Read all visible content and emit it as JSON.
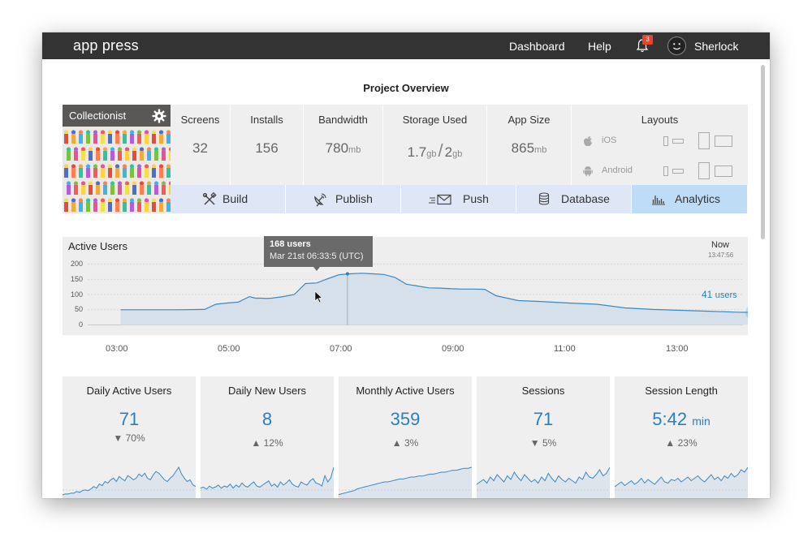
{
  "app": {
    "brand": "app press"
  },
  "nav": {
    "dashboard": "Dashboard",
    "help": "Help",
    "notifications_count": "3",
    "user_name": "Sherlock"
  },
  "page": {
    "title": "Project Overview"
  },
  "project": {
    "name": "Collectionist"
  },
  "stats": {
    "screens": {
      "label": "Screens",
      "value": "32"
    },
    "installs": {
      "label": "Installs",
      "value": "156"
    },
    "bandwidth": {
      "label": "Bandwidth",
      "value": "780",
      "unit": "mb"
    },
    "storage": {
      "label": "Storage Used",
      "used": "1.7",
      "used_unit": "gb",
      "total": "2",
      "total_unit": "gb"
    },
    "app_size": {
      "label": "App Size",
      "value": "865",
      "unit": "mb"
    }
  },
  "layouts": {
    "title": "Layouts",
    "ios": "iOS",
    "android": "Android"
  },
  "actions": [
    {
      "label": "Build",
      "icon": "tools-icon"
    },
    {
      "label": "Publish",
      "icon": "satellite-icon"
    },
    {
      "label": "Push",
      "icon": "envelope-icon"
    },
    {
      "label": "Database",
      "icon": "database-icon"
    },
    {
      "label": "Analytics",
      "icon": "bar-chart-icon"
    }
  ],
  "active_users": {
    "title": "Active Users",
    "now_label": "Now",
    "now_time": "13:47:56",
    "tooltip_users": "168 users",
    "tooltip_date": "Mar 21st 06:33:5 (UTC)",
    "current_value": "41",
    "current_unit": "users"
  },
  "chart_data": {
    "type": "area",
    "title": "Active Users",
    "yticks": [
      "200",
      "150",
      "100",
      "50",
      "0"
    ],
    "xticks": [
      "03:00",
      "05:00",
      "07:00",
      "09:00",
      "11:00",
      "13:00"
    ],
    "ylim": [
      0,
      200
    ],
    "x_hours": [
      2.5,
      3.0,
      3.5,
      4.0,
      4.2,
      4.4,
      4.6,
      4.8,
      4.9,
      5.0,
      5.1,
      5.2,
      5.4,
      5.6,
      5.8,
      6.0,
      6.2,
      6.4,
      6.6,
      6.8,
      7.0,
      7.2,
      7.4,
      7.6,
      7.8,
      8.0,
      8.2,
      8.4,
      8.6,
      8.8,
      9.0,
      9.2,
      9.4,
      9.6,
      10.0,
      10.5,
      11.0,
      11.5,
      12.0,
      12.5,
      13.0,
      13.5,
      13.78
    ],
    "values": [
      50,
      50,
      50,
      51,
      68,
      72,
      75,
      93,
      88,
      88,
      87,
      88,
      93,
      100,
      136,
      138,
      152,
      165,
      168,
      170,
      168,
      166,
      156,
      134,
      128,
      122,
      121,
      119,
      118,
      118,
      117,
      96,
      88,
      80,
      77,
      72,
      68,
      56,
      51,
      48,
      45,
      42,
      41
    ],
    "highlight": {
      "x_hours": 6.55,
      "value": 168
    },
    "grid": true
  },
  "cards": [
    {
      "title": "Daily Active Users",
      "value": "71",
      "change": "70%",
      "direction": "down"
    },
    {
      "title": "Daily New Users",
      "value": "8",
      "change": "12%",
      "direction": "up"
    },
    {
      "title": "Monthly Active Users",
      "value": "359",
      "change": "3%",
      "direction": "up"
    },
    {
      "title": "Sessions",
      "value": "71",
      "change": "5%",
      "direction": "down"
    },
    {
      "title": "Session Length",
      "value": "5:42",
      "unit": "min",
      "change": "23%",
      "direction": "up"
    }
  ],
  "sparklines": [
    [
      2,
      3,
      3,
      4,
      4,
      6,
      5,
      7,
      8,
      7,
      9,
      12,
      10,
      15,
      13,
      18,
      16,
      20,
      22,
      18,
      24,
      21,
      19,
      25,
      23,
      20,
      22,
      27,
      24,
      28,
      22,
      20,
      26,
      30,
      28,
      24,
      20,
      18,
      22,
      25,
      30,
      35,
      27,
      22,
      18,
      20,
      14,
      12
    ],
    [
      8,
      9,
      7,
      10,
      8,
      9,
      11,
      8,
      10,
      9,
      12,
      8,
      11,
      9,
      13,
      10,
      9,
      12,
      14,
      10,
      9,
      11,
      13,
      15,
      10,
      12,
      9,
      14,
      11,
      13,
      16,
      12,
      10,
      9,
      14,
      12,
      11,
      15,
      17,
      13,
      12,
      10,
      20,
      14,
      18,
      28
    ],
    [
      2,
      3,
      4,
      5,
      6,
      8,
      9,
      10,
      11,
      12,
      13,
      14,
      15,
      15,
      16,
      17,
      18,
      18,
      19,
      20,
      20,
      21,
      21,
      22,
      23,
      23,
      24,
      25,
      25,
      26,
      27,
      27,
      28,
      29,
      29,
      30
    ],
    [
      10,
      12,
      14,
      11,
      16,
      13,
      18,
      15,
      12,
      17,
      14,
      20,
      16,
      13,
      18,
      15,
      12,
      14,
      11,
      16,
      13,
      19,
      15,
      12,
      17,
      14,
      12,
      15,
      13,
      11,
      16,
      14,
      20,
      16,
      15,
      18,
      22,
      17,
      19,
      24
    ],
    [
      8,
      10,
      12,
      9,
      11,
      13,
      10,
      12,
      15,
      11,
      14,
      12,
      10,
      13,
      16,
      12,
      11,
      14,
      13,
      15,
      12,
      14,
      16,
      13,
      15,
      17,
      14,
      12,
      15,
      18,
      14,
      16,
      13,
      17,
      15,
      19,
      16,
      18,
      22,
      20,
      24
    ]
  ]
}
